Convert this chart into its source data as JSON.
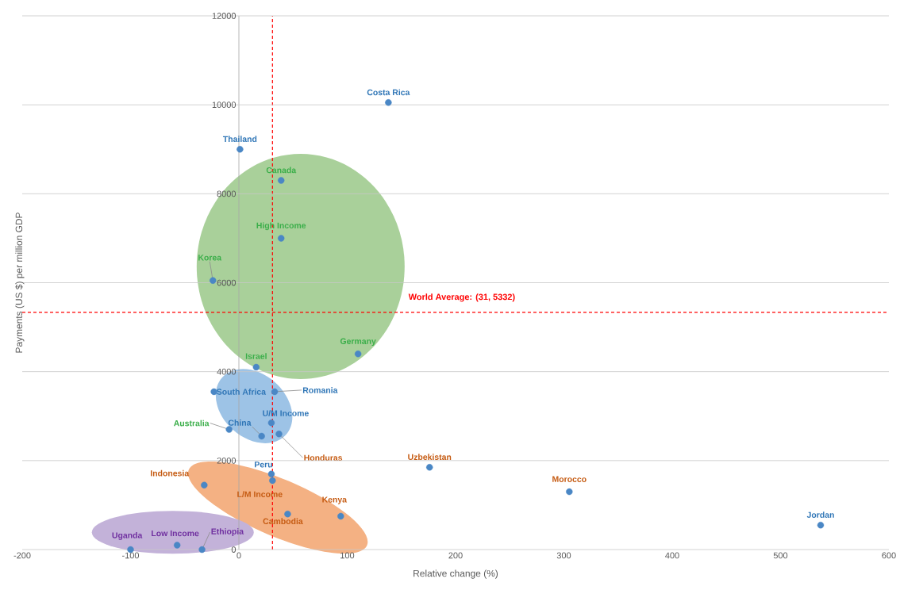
{
  "chart_data": {
    "type": "scatter",
    "xlabel": "Relative change (%)",
    "ylabel": "Payments (US $) per million GDP",
    "series": [
      {
        "color": "#4a87c5",
        "x": [
          138,
          1,
          -23,
          33,
          30,
          21,
          30,
          537
        ],
        "values": [
          10050,
          9000,
          3550,
          3550,
          2850,
          2550,
          1700,
          550
        ]
      },
      {
        "color": "#4a87c5",
        "x": [
          39,
          39,
          -24,
          110,
          16,
          -9
        ],
        "values": [
          8300,
          7000,
          6050,
          4400,
          4100,
          2700
        ]
      },
      {
        "color": "#4a87c5",
        "x": [
          37,
          176,
          -32,
          31,
          94,
          45,
          305
        ],
        "values": [
          2600,
          1850,
          1450,
          1550,
          750,
          800,
          1300
        ]
      },
      {
        "color": "#4a87c5",
        "x": [
          -100,
          -57,
          -34
        ],
        "values": [
          0,
          100,
          0
        ]
      }
    ],
    "annotations": [
      {
        "text": "Costa Rica",
        "x": 138,
        "y": 10050
      },
      {
        "text": "Thailand",
        "x": 1,
        "y": 9000
      },
      {
        "text": "South Africa",
        "x": -23,
        "y": 3550
      },
      {
        "text": "Romania",
        "x": 33,
        "y": 3550
      },
      {
        "text": "U/M Income",
        "x": 30,
        "y": 2850
      },
      {
        "text": "China",
        "x": 21,
        "y": 2550
      },
      {
        "text": "Peru",
        "x": 30,
        "y": 1700
      },
      {
        "text": "Jordan",
        "x": 537,
        "y": 550
      },
      {
        "text": "Canada",
        "x": 39,
        "y": 8300
      },
      {
        "text": "High Income",
        "x": 39,
        "y": 7000
      },
      {
        "text": "Korea",
        "x": -24,
        "y": 6050
      },
      {
        "text": "Germany",
        "x": 110,
        "y": 4400
      },
      {
        "text": "Israel",
        "x": 16,
        "y": 4100
      },
      {
        "text": "Australia",
        "x": -9,
        "y": 2700
      },
      {
        "text": "Honduras",
        "x": 37,
        "y": 2600
      },
      {
        "text": "Uzbekistan",
        "x": 176,
        "y": 1850
      },
      {
        "text": "Indonesia",
        "x": -32,
        "y": 1450
      },
      {
        "text": "L/M Income",
        "x": 31,
        "y": 1550
      },
      {
        "text": "Kenya",
        "x": 94,
        "y": 750
      },
      {
        "text": "Cambodia",
        "x": 45,
        "y": 800
      },
      {
        "text": "Morocco",
        "x": 305,
        "y": 1300
      },
      {
        "text": "Uganda",
        "x": -100,
        "y": 0
      },
      {
        "text": "Low Income",
        "x": -57,
        "y": 100
      },
      {
        "text": "Ethiopia",
        "x": -34,
        "y": 0
      }
    ],
    "ref_lines": [
      {
        "axis": "x",
        "value": 31,
        "color": "#ff0000",
        "line_style": "dashed"
      },
      {
        "axis": "y",
        "value": 5332,
        "label": "World Average: (31, 5332)",
        "color": "#ff0000",
        "line_style": "dashed"
      }
    ],
    "xlim": [
      -200,
      600
    ],
    "ylim": [
      0,
      12000
    ],
    "xticks": [
      -200,
      -100,
      0,
      100,
      200,
      300,
      400,
      500,
      600
    ],
    "yticks": [
      0,
      2000,
      4000,
      6000,
      8000,
      10000,
      12000
    ],
    "grid": "y",
    "marker": "circle"
  }
}
